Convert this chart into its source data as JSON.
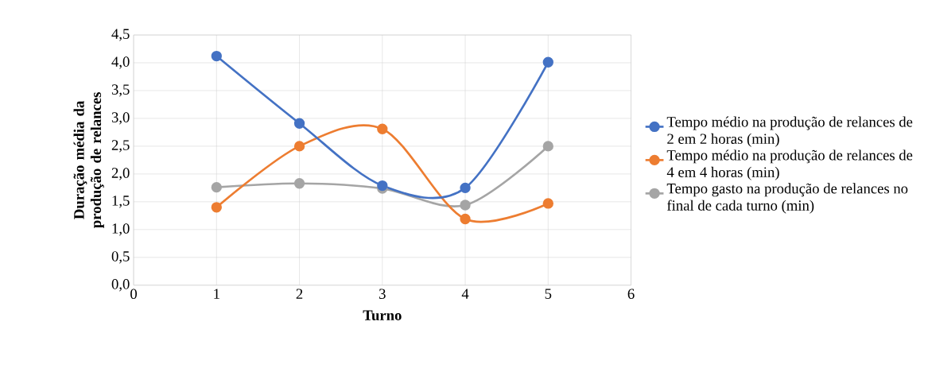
{
  "chart_data": {
    "type": "line",
    "xlabel": "Turno",
    "ylabel": "Duração média  da produção de relances",
    "x": [
      1,
      2,
      3,
      4,
      5
    ],
    "series": [
      {
        "name": "Tempo médio na produção de relances de 2 em 2 horas (min)",
        "color": "#4472c4",
        "values": [
          4.12,
          2.91,
          1.79,
          1.75,
          4.01
        ]
      },
      {
        "name": "Tempo médio na produção de relances de 4 em 4 horas (min)",
        "color": "#ed7d31",
        "values": [
          1.4,
          2.5,
          2.81,
          1.19,
          1.47
        ]
      },
      {
        "name": "Tempo gasto na produção de relances no final de cada turno (min)",
        "color": "#a5a5a5",
        "values": [
          1.76,
          1.83,
          1.74,
          1.44,
          2.5
        ]
      }
    ],
    "xlim": [
      0,
      6
    ],
    "xticks": [
      0,
      1,
      2,
      3,
      4,
      5,
      6
    ],
    "ylim": [
      0,
      4.5
    ],
    "yticks": [
      {
        "value": 0,
        "label": "0,0"
      },
      {
        "value": 0.5,
        "label": "0,5"
      },
      {
        "value": 1,
        "label": "1,0"
      },
      {
        "value": 1.5,
        "label": "1,5"
      },
      {
        "value": 2,
        "label": "2,0"
      },
      {
        "value": 2.5,
        "label": "2,5"
      },
      {
        "value": 3,
        "label": "3,0"
      },
      {
        "value": 3.5,
        "label": "3,5"
      },
      {
        "value": 4,
        "label": "4,0"
      },
      {
        "value": 4.5,
        "label": "4,5"
      }
    ],
    "grid": true,
    "legend": "right",
    "marker": "circle",
    "line_style": "solid"
  }
}
